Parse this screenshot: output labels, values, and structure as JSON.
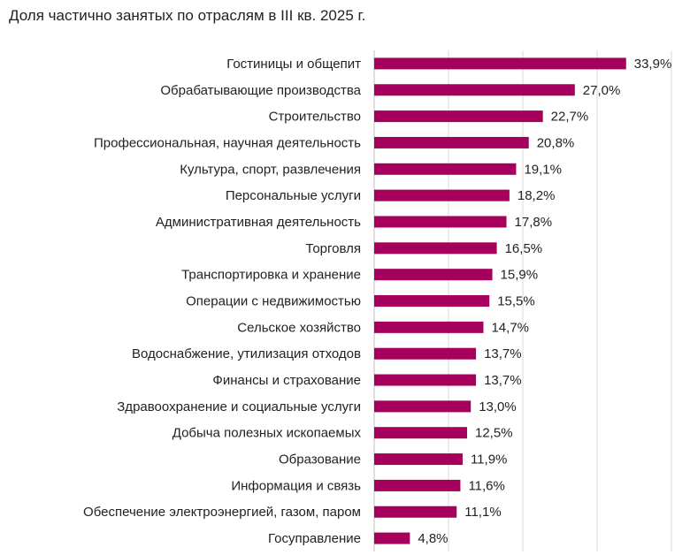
{
  "title": "Доля частично занятых по отраслям в III кв. 2025 г.",
  "colors": {
    "bar": "#A5005C",
    "grid": "#D9D9D9",
    "axis": "#BFBFBF"
  },
  "chart_data": {
    "type": "bar",
    "orientation": "horizontal",
    "title": "Доля частично занятых по отраслям в III кв. 2025 г.",
    "xlim": [
      0,
      40
    ],
    "grid": true,
    "categories": [
      "Гостиницы и общепит",
      "Обрабатывающие производства",
      "Строительство",
      "Профессиональная, научная деятельность",
      "Культура, спорт, развлечения",
      "Персональные услуги",
      "Административная деятельность",
      "Торговля",
      "Транспортировка и хранение",
      "Операции с недвижимостью",
      "Сельское хозяйство",
      "Водоснабжение, утилизация отходов",
      "Финансы и страхование",
      "Здравоохранение и социальные услуги",
      "Добыча полезных ископаемых",
      "Образование",
      "Информация и связь",
      "Обеспечение электроэнергией, газом, паром",
      "Госуправление"
    ],
    "values": [
      33.9,
      27.0,
      22.7,
      20.8,
      19.1,
      18.2,
      17.8,
      16.5,
      15.9,
      15.5,
      14.7,
      13.7,
      13.7,
      13.0,
      12.5,
      11.9,
      11.6,
      11.1,
      4.8
    ],
    "value_labels": [
      "33,9%",
      "27,0%",
      "22,7%",
      "20,8%",
      "19,1%",
      "18,2%",
      "17,8%",
      "16,5%",
      "15,9%",
      "15,5%",
      "14,7%",
      "13,7%",
      "13,7%",
      "13,0%",
      "12,5%",
      "11,9%",
      "11,6%",
      "11,1%",
      "4,8%"
    ]
  }
}
